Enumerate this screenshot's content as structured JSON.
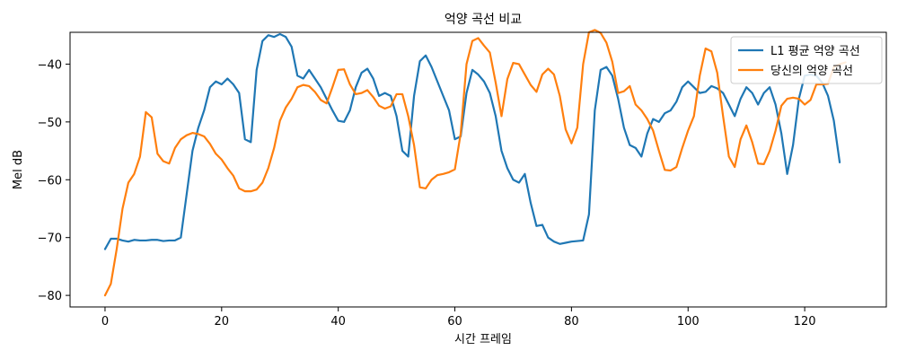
{
  "chart_data": {
    "type": "line",
    "title": "억양 곡선 비교",
    "xlabel": "시간 프레임",
    "ylabel": "Mel dB",
    "xlim": [
      -6,
      134
    ],
    "ylim": [
      -82,
      -34.5
    ],
    "x_ticks": [
      0,
      20,
      40,
      60,
      80,
      100,
      120
    ],
    "y_ticks": [
      -40,
      -50,
      -60,
      -70,
      -80
    ],
    "y_tick_labels": [
      "−40",
      "−50",
      "−60",
      "−70",
      "−80"
    ],
    "grid": false,
    "legend_position": "top-right",
    "series": [
      {
        "name": "L1 평균 억양 곡선",
        "color": "#1f77b4",
        "x_start": 0,
        "values": [
          -72.0,
          -70.2,
          -70.2,
          -70.5,
          -70.7,
          -70.4,
          -70.5,
          -70.5,
          -70.4,
          -70.4,
          -70.6,
          -70.5,
          -70.5,
          -70.0,
          -62.5,
          -55.0,
          -51.0,
          -48.0,
          -44.0,
          -43.0,
          -43.5,
          -42.5,
          -43.5,
          -45.0,
          -53.0,
          -53.5,
          -41.0,
          -36.0,
          -35.0,
          -35.3,
          -34.8,
          -35.3,
          -37.0,
          -42.0,
          -42.5,
          -41.0,
          -42.5,
          -44.0,
          -46.0,
          -48.0,
          -49.8,
          -50.0,
          -48.0,
          -44.0,
          -41.5,
          -40.8,
          -42.5,
          -45.5,
          -45.0,
          -45.5,
          -49.0,
          -55.0,
          -56.0,
          -45.5,
          -39.5,
          -38.5,
          -40.5,
          -43.0,
          -45.5,
          -48.0,
          -53.0,
          -52.5,
          -45.0,
          -41.0,
          -41.8,
          -43.0,
          -45.0,
          -49.0,
          -55.0,
          -58.0,
          -60.0,
          -60.5,
          -59.0,
          -64.0,
          -68.0,
          -67.8,
          -70.0,
          -70.7,
          -71.1,
          -70.9,
          -70.7,
          -70.6,
          -70.5,
          -66.0,
          -48.0,
          -41.0,
          -40.5,
          -42.0,
          -46.0,
          -51.0,
          -54.0,
          -54.5,
          -56.0,
          -52.0,
          -49.5,
          -50.0,
          -48.5,
          -48.0,
          -46.5,
          -44.0,
          -43.0,
          -44.0,
          -45.0,
          -44.8,
          -43.8,
          -44.2,
          -45.0,
          -47.0,
          -49.0,
          -46.0,
          -44.0,
          -45.0,
          -47.0,
          -45.0,
          -44.0,
          -47.0,
          -52.0,
          -59.0,
          -54.0,
          -46.0,
          -42.0,
          -41.8,
          -42.0,
          -43.2,
          -45.5,
          -49.8,
          -57.0
        ]
      },
      {
        "name": "당신의 억양 곡선",
        "color": "#ff7f0e",
        "x_start": 0,
        "values": [
          -80.0,
          -78.0,
          -72.0,
          -65.0,
          -60.5,
          -59.0,
          -56.0,
          -48.3,
          -49.2,
          -55.5,
          -56.8,
          -57.2,
          -54.5,
          -53.0,
          -52.3,
          -51.9,
          -52.1,
          -52.5,
          -53.8,
          -55.5,
          -56.5,
          -58.0,
          -59.3,
          -61.5,
          -62.0,
          -62.0,
          -61.7,
          -60.5,
          -58.0,
          -54.5,
          -49.8,
          -47.5,
          -46.0,
          -44.0,
          -43.6,
          -43.8,
          -44.8,
          -46.2,
          -46.8,
          -44.0,
          -41.0,
          -40.9,
          -43.5,
          -45.2,
          -45.0,
          -44.5,
          -45.7,
          -47.2,
          -47.7,
          -47.3,
          -45.2,
          -45.2,
          -49.0,
          -54.0,
          -61.3,
          -61.5,
          -60.0,
          -59.2,
          -59.0,
          -58.7,
          -58.2,
          -52.0,
          -40.0,
          -36.0,
          -35.5,
          -36.8,
          -38.0,
          -43.2,
          -49.0,
          -42.6,
          -39.8,
          -40.0,
          -41.8,
          -43.6,
          -44.8,
          -41.8,
          -40.8,
          -41.8,
          -45.5,
          -51.3,
          -53.7,
          -51.0,
          -40.0,
          -34.5,
          -34.1,
          -34.6,
          -36.3,
          -39.6,
          -45.0,
          -44.7,
          -43.8,
          -47.0,
          -48.0,
          -49.5,
          -51.5,
          -55.0,
          -58.3,
          -58.4,
          -57.8,
          -54.5,
          -51.5,
          -49.0,
          -42.0,
          -37.3,
          -37.8,
          -41.5,
          -49.0,
          -56.0,
          -57.8,
          -53.0,
          -50.6,
          -53.5,
          -57.2,
          -57.3,
          -55.0,
          -51.5,
          -47.2,
          -46.0,
          -45.8,
          -46.0,
          -47.0,
          -46.2,
          -43.5,
          -43.5,
          -43.4,
          -40.5,
          -40.0,
          -39.7
        ]
      }
    ]
  }
}
